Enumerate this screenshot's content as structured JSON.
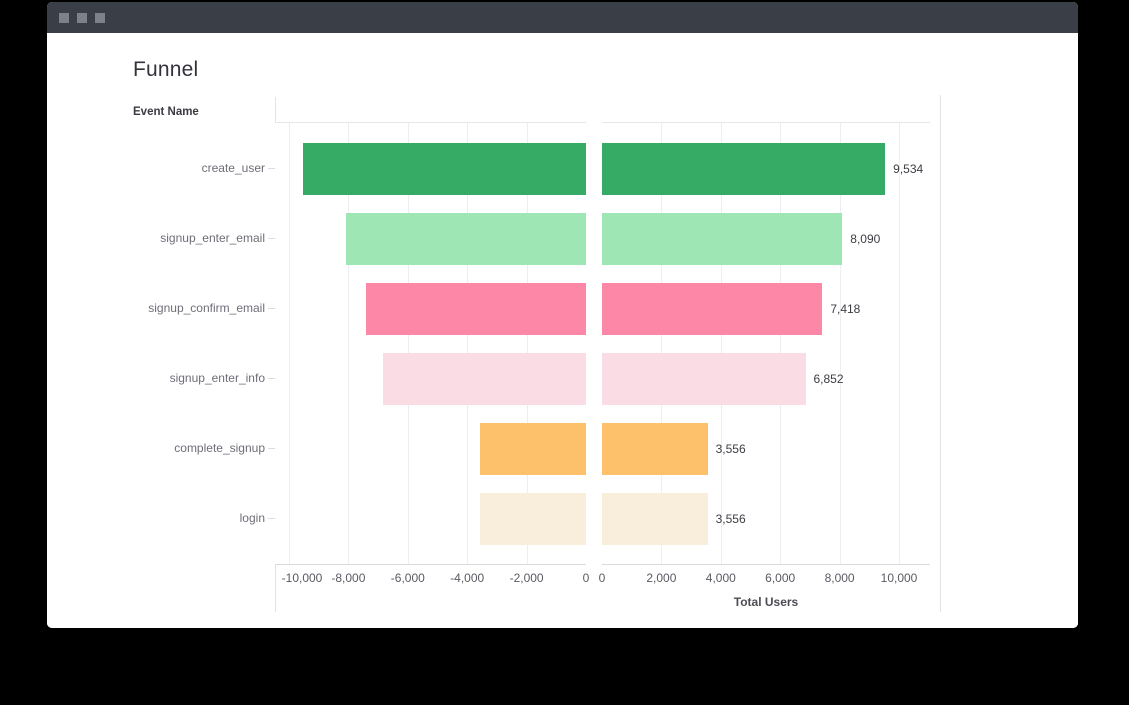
{
  "window": {
    "titlebar_controls": [
      "window-control-icon",
      "window-control-icon",
      "window-control-icon"
    ],
    "titlebar_color": "#3a3e47",
    "control_color": "#7d818b"
  },
  "chart_data": {
    "type": "bar",
    "orientation": "horizontal",
    "mirrored_left_panel": true,
    "grid": true,
    "title": "Funnel",
    "category_axis_label": "Event Name",
    "value_axis_label": "Total Users",
    "categories": [
      "create_user",
      "signup_enter_email",
      "signup_confirm_email",
      "signup_enter_info",
      "complete_signup",
      "login"
    ],
    "values": [
      9534,
      8090,
      7418,
      6852,
      3556,
      3556
    ],
    "value_labels": [
      "9,534",
      "8,090",
      "7,418",
      "6,852",
      "3,556",
      "3,556"
    ],
    "colors": [
      "#35ab66",
      "#9fe6b5",
      "#fc87a7",
      "#fadce5",
      "#fdc06b",
      "#f8eedb"
    ],
    "left_axis": {
      "range": [
        -10000,
        0
      ],
      "ticks": [
        {
          "value": -10000,
          "label": "-10,000",
          "label_offset": 13
        },
        {
          "value": -8000,
          "label": "-8,000",
          "label_offset": 0
        },
        {
          "value": -6000,
          "label": "-6,000",
          "label_offset": 0
        },
        {
          "value": -4000,
          "label": "-4,000",
          "label_offset": 0
        },
        {
          "value": -2000,
          "label": "-2,000",
          "label_offset": 0
        },
        {
          "value": 0,
          "label": "0",
          "label_offset": 0
        }
      ]
    },
    "right_axis": {
      "range": [
        0,
        10000
      ],
      "ticks": [
        {
          "value": 0,
          "label": "0",
          "label_offset": 0
        },
        {
          "value": 2000,
          "label": "2,000",
          "label_offset": 0
        },
        {
          "value": 4000,
          "label": "4,000",
          "label_offset": 0
        },
        {
          "value": 6000,
          "label": "6,000",
          "label_offset": 0
        },
        {
          "value": 8000,
          "label": "8,000",
          "label_offset": 0
        },
        {
          "value": 10000,
          "label": "10,000",
          "label_offset": 0
        }
      ]
    }
  }
}
